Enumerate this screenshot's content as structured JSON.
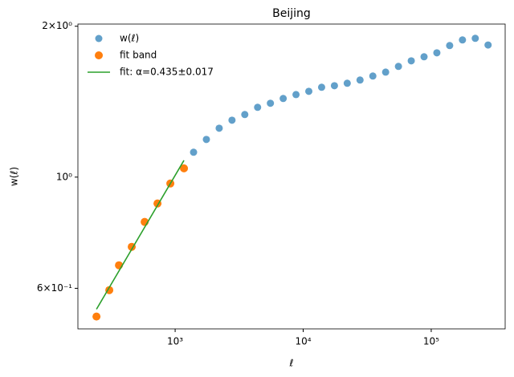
{
  "chart_data": {
    "type": "scatter",
    "title": "Beijing",
    "x_label": "ℓ",
    "y_label": "w(ℓ)",
    "x_log": true,
    "y_log": true,
    "legend": "upper left",
    "xlim": [
      174,
      378000
    ],
    "ylim": [
      0.498,
      2.02
    ],
    "xticks": [
      {
        "value": 1000,
        "label": "10³"
      },
      {
        "value": 10000,
        "label": "10⁴"
      },
      {
        "value": 100000,
        "label": "10⁵"
      }
    ],
    "yticks": [
      {
        "value": 0.6,
        "label": "6×10⁻¹"
      },
      {
        "value": 1,
        "label": "10⁰"
      },
      {
        "value": 2,
        "label": "2×10⁰"
      }
    ],
    "series": [
      {
        "name": "w(ℓ)",
        "kind": "scatter",
        "color": "#1f77b4",
        "x": [
          1393,
          1754,
          2208,
          2780,
          3499,
          4406,
          5546,
          6982,
          8790,
          11066,
          13932,
          17539,
          22080,
          27797,
          34995,
          44055,
          55463,
          69823,
          87902,
          110660,
          139316,
          175388,
          220800,
          277971
        ],
        "values": [
          1.121,
          1.189,
          1.252,
          1.299,
          1.333,
          1.378,
          1.404,
          1.435,
          1.461,
          1.483,
          1.511,
          1.522,
          1.539,
          1.562,
          1.591,
          1.62,
          1.663,
          1.706,
          1.738,
          1.77,
          1.83,
          1.878,
          1.892,
          1.835
        ]
      },
      {
        "name": "fit band",
        "kind": "scatter",
        "color": "#ff7f0e",
        "x": [
          243,
          306,
          364,
          458,
          578,
          728,
          917,
          1172
        ],
        "values": [
          0.527,
          0.595,
          0.667,
          0.726,
          0.814,
          0.886,
          0.971,
          1.041
        ]
      },
      {
        "name": "fit: α=0.435±0.017",
        "kind": "line",
        "color": "#2ca02c",
        "x": [
          243,
          1172
        ],
        "values": [
          0.545,
          1.08
        ]
      }
    ]
  }
}
